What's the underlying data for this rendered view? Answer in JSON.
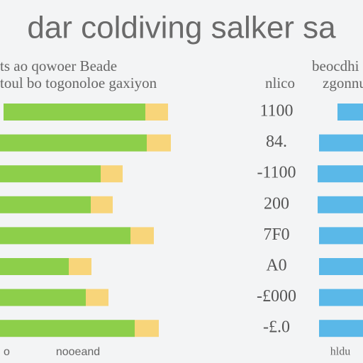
{
  "chart_data": {
    "type": "bar",
    "orientation": "horizontal",
    "stacked": true,
    "title": "dar coldiving salker sa",
    "header_left": [
      "ts ao qowoer Beade",
      "toul bo togonoloe gaxiyon"
    ],
    "header_mid": "nlico",
    "header_right": [
      "beocdhi",
      "zgonnug"
    ],
    "categories": [
      "1100",
      "84.",
      "-1100",
      "200",
      "7F0",
      "A0",
      "-£000",
      "-£.0"
    ],
    "series": [
      {
        "color": "#8dcf4a",
        "values": [
          200,
          207,
          142,
          128,
          184,
          97,
          121,
          190
        ]
      },
      {
        "color": "#f8d57a",
        "values": [
          32,
          34,
          31,
          31,
          33,
          32,
          32,
          34
        ]
      },
      {
        "color": "#5ab8e8",
        "panel": "right",
        "values": [
          36,
          62,
          64,
          64,
          62,
          62,
          62,
          62
        ]
      }
    ],
    "xlim": [
      0,
      512
    ],
    "footer": [
      "o",
      "nooeand",
      "hldu"
    ]
  }
}
